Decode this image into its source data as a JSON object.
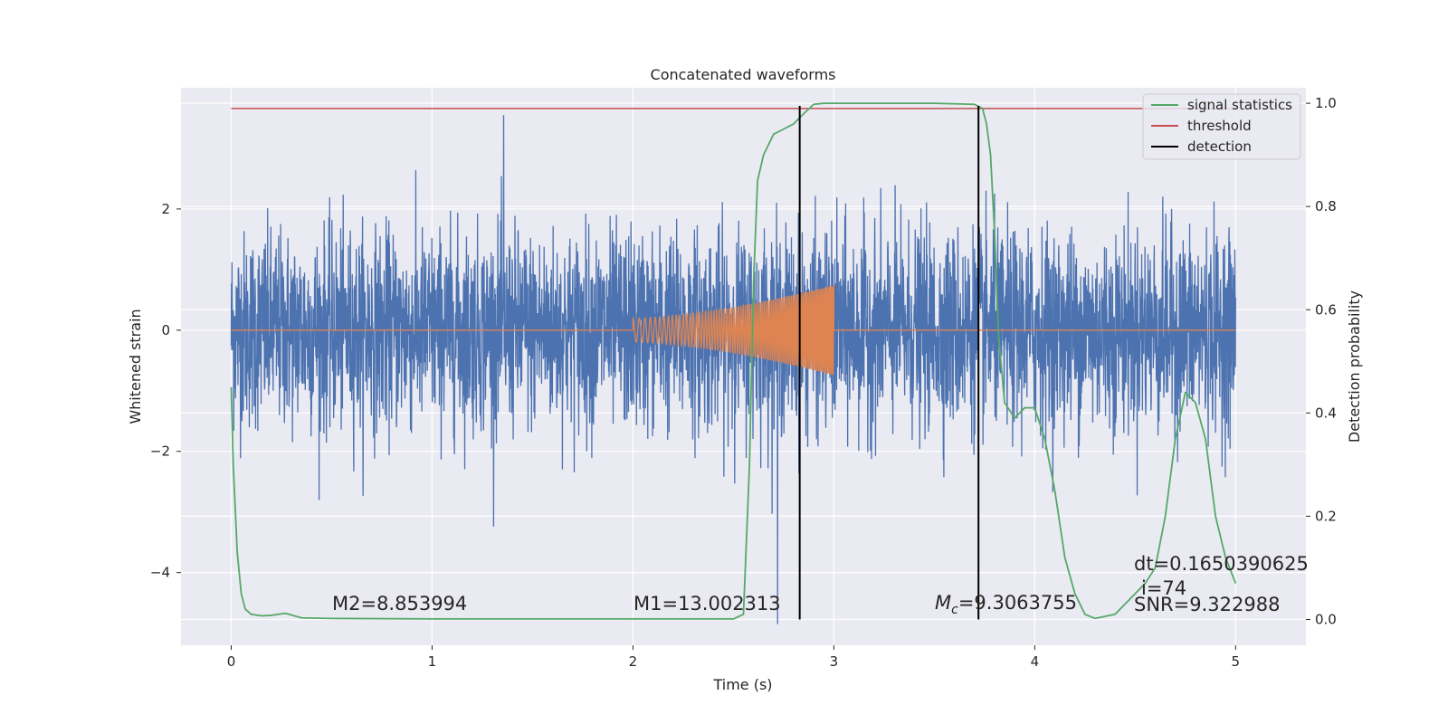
{
  "chart_data": {
    "type": "line",
    "title": "Concatenated waveforms",
    "xlabel": "Time (s)",
    "ylabel": "Whitened strain",
    "y2label": "Detection probability",
    "xlim": [
      -0.25,
      5.35
    ],
    "ylim": [
      -5.2,
      4.0
    ],
    "y2lim": [
      -0.05,
      1.03
    ],
    "xticks": [
      0,
      1,
      2,
      3,
      4,
      5
    ],
    "xtick_labels": [
      "0",
      "1",
      "2",
      "3",
      "4",
      "5"
    ],
    "yticks": [
      -4,
      -2,
      0,
      2
    ],
    "ytick_labels": [
      "−4",
      "−2",
      "0",
      "2"
    ],
    "y2ticks": [
      0.0,
      0.2,
      0.4,
      0.6,
      0.8,
      1.0
    ],
    "y2tick_labels": [
      "0.0",
      "0.2",
      "0.4",
      "0.6",
      "0.8",
      "1.0"
    ],
    "grid": true,
    "legend_position": "top-right",
    "series": [
      {
        "name": "",
        "axis": "left",
        "kind": "noise",
        "color": "#4c72b0",
        "t_start": 0,
        "t_end": 5,
        "typical_amplitude": 1.3,
        "max_value": 3.55,
        "min_value": -4.85
      },
      {
        "name": "",
        "axis": "left",
        "kind": "chirp",
        "color": "#dd8452",
        "t_start": 2.0,
        "t_end": 3.0,
        "start_amplitude": 0.2,
        "end_amplitude": 0.75
      },
      {
        "name": "signal statistics",
        "axis": "right",
        "color": "#55a868",
        "x": [
          0,
          0.01,
          0.03,
          0.05,
          0.07,
          0.1,
          0.15,
          0.2,
          0.27,
          0.35,
          0.5,
          1.0,
          1.5,
          2.0,
          2.5,
          2.55,
          2.58,
          2.6,
          2.62,
          2.65,
          2.7,
          2.75,
          2.8,
          2.85,
          2.9,
          2.95,
          3.0,
          3.5,
          3.7,
          3.74,
          3.76,
          3.78,
          3.8,
          3.82,
          3.85,
          3.9,
          3.95,
          4.0,
          4.05,
          4.1,
          4.15,
          4.2,
          4.25,
          4.3,
          4.4,
          4.5,
          4.55,
          4.6,
          4.65,
          4.7,
          4.75,
          4.8,
          4.85,
          4.9,
          4.95,
          5.0
        ],
        "y": [
          0.45,
          0.3,
          0.13,
          0.05,
          0.02,
          0.01,
          0.007,
          0.008,
          0.012,
          0.003,
          0.002,
          0.001,
          0.001,
          0.001,
          0.001,
          0.01,
          0.3,
          0.65,
          0.85,
          0.9,
          0.94,
          0.95,
          0.96,
          0.98,
          0.998,
          1.0,
          1.0,
          1.0,
          0.998,
          0.99,
          0.96,
          0.9,
          0.75,
          0.55,
          0.42,
          0.39,
          0.41,
          0.41,
          0.35,
          0.25,
          0.12,
          0.05,
          0.01,
          0.002,
          0.01,
          0.05,
          0.07,
          0.1,
          0.2,
          0.35,
          0.44,
          0.42,
          0.35,
          0.2,
          0.12,
          0.07
        ]
      },
      {
        "name": "threshold",
        "axis": "right",
        "color": "#c44e52",
        "x": [
          0,
          5
        ],
        "y": [
          0.99,
          0.99
        ]
      },
      {
        "name": "detection",
        "axis": "right",
        "color": "#000000",
        "x_positions": [
          2.83,
          3.72
        ],
        "y_range": [
          0.0,
          0.995
        ]
      }
    ],
    "annotations": {
      "m2": "M2=8.853994",
      "m1": "M1=13.002313",
      "mc_symbol": "M",
      "mc_sub": "c",
      "mc_value": "=9.3063755",
      "dt": "dt=0.1650390625",
      "i": "i=74",
      "snr": "SNR=9.322988"
    },
    "colors": {
      "plot_background": "#eaeaf2",
      "grid": "#ffffff",
      "noise": "#4c72b0",
      "chirp": "#dd8452",
      "statistic": "#55a868",
      "threshold": "#c44e52",
      "detection": "#000000"
    }
  }
}
